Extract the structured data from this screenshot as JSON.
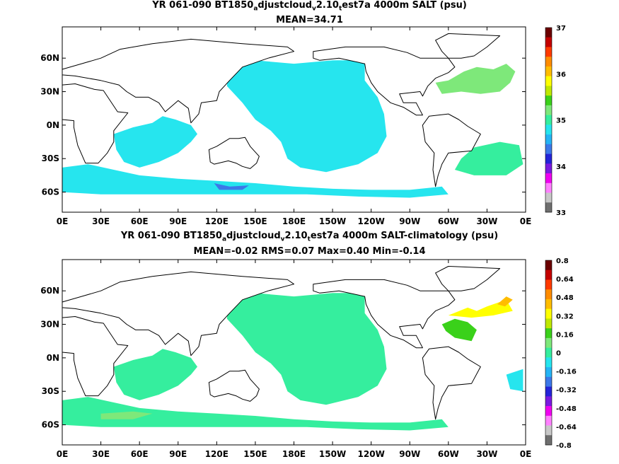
{
  "chart_data": [
    {
      "type": "heatmap",
      "title_parts": [
        "YR 061-090 BT1850",
        "a",
        "djustcloud",
        "v",
        "2.10",
        "t",
        "est7a 4000m SALT (psu)"
      ],
      "subtitle": "MEAN=34.71",
      "xticks": [
        "0E",
        "30E",
        "60E",
        "90E",
        "120E",
        "150E",
        "180E",
        "150W",
        "120W",
        "90W",
        "60W",
        "30W",
        "0E"
      ],
      "yticks": [
        "60N",
        "30N",
        "0N",
        "30S",
        "60S"
      ],
      "xlim": [
        0,
        360
      ],
      "ylim": [
        -78,
        88
      ],
      "colorbar": {
        "ticks": [
          "37",
          "36",
          "35",
          "34",
          "33"
        ],
        "colors": [
          "#6b0000",
          "#c40000",
          "#ff3a00",
          "#ff8c00",
          "#ffbd00",
          "#ffff00",
          "#bfe800",
          "#3ad11a",
          "#7ee87a",
          "#35ee9e",
          "#26e5ee",
          "#25b4f5",
          "#3c78e8",
          "#2424d8",
          "#7a1ae0",
          "#f000f0",
          "#ff80ff",
          "#c8c8c8",
          "#6e6e6e"
        ]
      },
      "fields": [
        {
          "value": 34.6,
          "color": "#26e5ee",
          "region": "Pacific basin"
        },
        {
          "value": 34.6,
          "color": "#26e5ee",
          "region": "Indian Ocean"
        },
        {
          "value": 34.6,
          "color": "#26e5ee",
          "region": "Southern Ocean"
        },
        {
          "value": 34.9,
          "color": "#35ee9e",
          "region": "South Atlantic"
        },
        {
          "value": 35.0,
          "color": "#7ee87a",
          "region": "North Atlantic"
        },
        {
          "value": 34.5,
          "color": "#3c78e8",
          "region": "South of Australia"
        }
      ]
    },
    {
      "type": "heatmap",
      "title_parts": [
        "YR 061-090 BT1850",
        "a",
        "djustcloud",
        "v",
        "2.10",
        "t",
        "est7a 4000m SALT-climatology (psu)"
      ],
      "subtitle": "MEAN=-0.02   RMS=0.07   Max=0.40   Min=-0.14",
      "xticks": [
        "0E",
        "30E",
        "60E",
        "90E",
        "120E",
        "150E",
        "180E",
        "150W",
        "120W",
        "90W",
        "60W",
        "30W",
        "0E"
      ],
      "yticks": [
        "60N",
        "30N",
        "0N",
        "30S",
        "60S"
      ],
      "xlim": [
        0,
        360
      ],
      "ylim": [
        -78,
        88
      ],
      "colorbar": {
        "ticks": [
          "0.8",
          "0.64",
          "0.48",
          "0.32",
          "0.16",
          "0",
          "-0.16",
          "-0.32",
          "-0.48",
          "-0.64",
          "-0.8"
        ],
        "colors": [
          "#6b0000",
          "#c40000",
          "#ff3a00",
          "#ff8c00",
          "#ffbd00",
          "#ffff00",
          "#bfe800",
          "#3ad11a",
          "#7ee87a",
          "#35ee9e",
          "#26e5ee",
          "#25b4f5",
          "#3c78e8",
          "#2424d8",
          "#7a1ae0",
          "#f000f0",
          "#ff80ff",
          "#c8c8c8",
          "#6e6e6e"
        ]
      },
      "fields": [
        {
          "value": -0.05,
          "color": "#35ee9e",
          "region": "Pacific basin"
        },
        {
          "value": -0.05,
          "color": "#35ee9e",
          "region": "Indian Ocean"
        },
        {
          "value": -0.05,
          "color": "#35ee9e",
          "region": "Southern Ocean"
        },
        {
          "value": 0.05,
          "color": "#7ee87a",
          "region": "South Indian band"
        },
        {
          "value": 0.1,
          "color": "#3ad11a",
          "region": "North Atlantic west"
        },
        {
          "value": 0.3,
          "color": "#ffff00",
          "region": "Labrador/Irminger"
        },
        {
          "value": 0.35,
          "color": "#ffbd00",
          "region": "Irminger tip"
        },
        {
          "value": -0.1,
          "color": "#26e5ee",
          "region": "Eastern South Atlantic"
        }
      ]
    }
  ]
}
